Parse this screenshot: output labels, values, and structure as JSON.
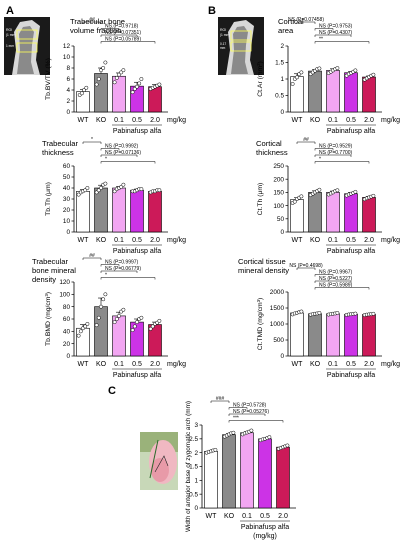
{
  "figure": {
    "panel_letters": [
      "A",
      "B",
      "C"
    ],
    "group_label": "Pabinafusp alfa",
    "unit_label": "mg/kg",
    "panel_c_group_label_lines": [
      "Pabinafusp alfa",
      "(mg/kg)"
    ],
    "inset_labels": {
      "roi_a": "ROI\n(1 mm)",
      "offset_a": "1 mm",
      "roi_b": "ROI\n(1 mm)",
      "offset_b": "0.17\nmm"
    }
  },
  "colors": {
    "WT": "#ffffff",
    "KO": "#8a8a8a",
    "0.1": "#f2a6f2",
    "0.5": "#cc33e6",
    "2.0": "#cc1a59",
    "error": "#222222",
    "point": "#ffffff"
  },
  "chart_data": [
    {
      "id": "A1",
      "type": "bar",
      "title_lines": [
        "Trabecular bone",
        "volume fraction"
      ],
      "ylabel": "Tb.BV/TV (%)",
      "categories": [
        "WT",
        "KO",
        "0.1",
        "0.5",
        "2.0"
      ],
      "values": [
        3.7,
        7.0,
        6.5,
        4.7,
        4.6
      ],
      "errors": [
        0.4,
        1.0,
        0.6,
        0.7,
        0.4
      ],
      "points": [
        [
          3.1,
          3.4,
          4.0,
          4.4
        ],
        [
          5.0,
          6.0,
          7.6,
          8.0,
          9.0
        ],
        [
          5.4,
          6.2,
          6.8,
          7.2,
          7.6
        ],
        [
          3.6,
          4.2,
          4.6,
          5.2,
          6.0
        ],
        [
          4.2,
          4.4,
          4.6,
          4.8,
          5.0
        ]
      ],
      "ylim": [
        0,
        12
      ],
      "yticks": [
        0,
        2,
        4,
        6,
        8,
        10,
        12
      ],
      "significance": [
        {
          "from": 0,
          "to": 1,
          "label": "##",
          "level": 0
        },
        {
          "from": 1,
          "to": 2,
          "label": "NS (P=0.9718)",
          "level": 1
        },
        {
          "from": 1,
          "to": 3,
          "label": "NS (P=0.07351)",
          "level": 2
        },
        {
          "from": 1,
          "to": 4,
          "label": "NS (P=0.05789)",
          "level": 3
        }
      ]
    },
    {
      "id": "A2",
      "type": "bar",
      "title_lines": [
        "Trabecular",
        "thickness"
      ],
      "ylabel": "Tb.Th (μm)",
      "categories": [
        "WT",
        "KO",
        "0.1",
        "0.5",
        "2.0"
      ],
      "values": [
        37,
        40,
        40,
        38,
        37
      ],
      "errors": [
        1.5,
        2.5,
        1.5,
        1.0,
        1.0
      ],
      "points": [
        [
          34,
          36,
          37,
          38,
          40
        ],
        [
          36,
          38,
          40,
          43,
          44
        ],
        [
          37,
          39,
          40,
          41,
          43
        ],
        [
          37,
          37,
          38,
          39,
          39
        ],
        [
          36,
          37,
          37,
          38,
          38
        ]
      ],
      "ylim": [
        0,
        60
      ],
      "yticks": [
        0,
        10,
        20,
        30,
        40,
        50,
        60
      ],
      "significance": [
        {
          "from": 0,
          "to": 1,
          "label": "*",
          "level": 0
        },
        {
          "from": 1,
          "to": 2,
          "label": "NS (P=0.9992)",
          "level": 1
        },
        {
          "from": 1,
          "to": 3,
          "label": "NS (P=0.07136)",
          "level": 2
        },
        {
          "from": 1,
          "to": 4,
          "label": "*",
          "level": 3
        }
      ]
    },
    {
      "id": "A3",
      "type": "bar",
      "title_lines": [
        "Trabecular",
        "bone mineral",
        "density"
      ],
      "ylabel": "Tb.BMD (mg/cm³)",
      "categories": [
        "WT",
        "KO",
        "0.1",
        "0.5",
        "2.0"
      ],
      "values": [
        45,
        80,
        65,
        55,
        51
      ],
      "errors": [
        6,
        14,
        6,
        5,
        4
      ],
      "points": [
        [
          33,
          40,
          45,
          48,
          52
        ],
        [
          50,
          62,
          80,
          92,
          100
        ],
        [
          55,
          60,
          65,
          72,
          75
        ],
        [
          42,
          48,
          55,
          60,
          62
        ],
        [
          44,
          48,
          52,
          54,
          57
        ]
      ],
      "ylim": [
        0,
        120
      ],
      "yticks": [
        0,
        20,
        40,
        60,
        80,
        100,
        120
      ],
      "significance": [
        {
          "from": 0,
          "to": 1,
          "label": "##",
          "level": 0
        },
        {
          "from": 1,
          "to": 2,
          "label": "NS (P=0.9997)",
          "level": 1
        },
        {
          "from": 1,
          "to": 3,
          "label": "NS (P=0.06779)",
          "level": 2
        },
        {
          "from": 1,
          "to": 4,
          "label": "*",
          "level": 3
        }
      ]
    },
    {
      "id": "B1",
      "type": "bar",
      "title_lines": [
        "Cortical",
        "area"
      ],
      "ylabel": "Ct.Ar (mm²)",
      "categories": [
        "WT",
        "KO",
        "0.1",
        "0.5",
        "2.0"
      ],
      "values": [
        1.07,
        1.24,
        1.26,
        1.19,
        1.06
      ],
      "errors": [
        0.09,
        0.05,
        0.05,
        0.04,
        0.03
      ],
      "points": [
        [
          0.85,
          1.0,
          1.05,
          1.15,
          1.2
        ],
        [
          1.15,
          1.2,
          1.25,
          1.3,
          1.32
        ],
        [
          1.18,
          1.22,
          1.26,
          1.3,
          1.33
        ],
        [
          1.1,
          1.15,
          1.18,
          1.22,
          1.26
        ],
        [
          0.98,
          1.02,
          1.06,
          1.1,
          1.13
        ]
      ],
      "ylim": [
        0,
        2.0
      ],
      "yticks": [
        0,
        0.5,
        1.0,
        1.5,
        2.0
      ],
      "significance": [
        {
          "from": 0,
          "to": 1,
          "label": "NS (P=0.07458)",
          "level": 0
        },
        {
          "from": 1,
          "to": 2,
          "label": "NS (P=0.9753)",
          "level": 1
        },
        {
          "from": 1,
          "to": 3,
          "label": "NS (P=0.4307)",
          "level": 2
        },
        {
          "from": 1,
          "to": 4,
          "label": "**",
          "level": 3
        }
      ]
    },
    {
      "id": "B2",
      "type": "bar",
      "title_lines": [
        "Cortical",
        "thickness"
      ],
      "ylabel": "Ct.Th (μm)",
      "categories": [
        "WT",
        "KO",
        "0.1",
        "0.5",
        "2.0"
      ],
      "values": [
        123,
        150,
        150,
        145,
        131
      ],
      "errors": [
        7,
        6,
        5,
        5,
        4
      ],
      "points": [
        [
          110,
          115,
          125,
          130,
          135
        ],
        [
          140,
          145,
          150,
          155,
          160
        ],
        [
          142,
          146,
          150,
          155,
          158
        ],
        [
          138,
          142,
          145,
          148,
          152
        ],
        [
          124,
          128,
          131,
          134,
          137
        ]
      ],
      "ylim": [
        0,
        250
      ],
      "yticks": [
        0,
        50,
        100,
        150,
        200,
        250
      ],
      "significance": [
        {
          "from": 0,
          "to": 1,
          "label": "##",
          "level": 0
        },
        {
          "from": 1,
          "to": 2,
          "label": "NS (P=0.9529)",
          "level": 1
        },
        {
          "from": 1,
          "to": 3,
          "label": "NS (P=0.7700)",
          "level": 2
        },
        {
          "from": 1,
          "to": 4,
          "label": "*",
          "level": 3
        }
      ]
    },
    {
      "id": "B3",
      "type": "bar",
      "title_lines": [
        "Cortical tissue",
        "mineral density"
      ],
      "ylabel": "Ct.TMD (mg/cm³)",
      "categories": [
        "WT",
        "KO",
        "0.1",
        "0.5",
        "2.0"
      ],
      "values": [
        1345,
        1320,
        1320,
        1305,
        1300
      ],
      "errors": [
        20,
        12,
        12,
        12,
        12
      ],
      "points": [
        [
          1300,
          1330,
          1350,
          1370,
          1390
        ],
        [
          1290,
          1310,
          1320,
          1330,
          1345
        ],
        [
          1295,
          1310,
          1320,
          1330,
          1345
        ],
        [
          1285,
          1298,
          1305,
          1315,
          1325
        ],
        [
          1280,
          1292,
          1300,
          1310,
          1318
        ]
      ],
      "ylim": [
        0,
        2000
      ],
      "yticks": [
        0,
        500,
        1000,
        1500,
        2000
      ],
      "significance": [
        {
          "from": 0,
          "to": 1,
          "label": "NS (P=0.4698)",
          "level": 0
        },
        {
          "from": 1,
          "to": 2,
          "label": "NS (P=0.9967)",
          "level": 1
        },
        {
          "from": 1,
          "to": 3,
          "label": "NS (P=0.5227)",
          "level": 2
        },
        {
          "from": 1,
          "to": 4,
          "label": "NS (P=0.5989)",
          "level": 3
        }
      ]
    },
    {
      "id": "C1",
      "type": "bar",
      "title_lines": [],
      "ylabel": "Width of anterior base of zygomatic arch (mm)",
      "categories": [
        "WT",
        "KO",
        "0.1",
        "0.5",
        "2.0"
      ],
      "values": [
        2.05,
        2.65,
        2.72,
        2.5,
        2.2
      ],
      "errors": [
        0.03,
        0.04,
        0.04,
        0.03,
        0.03
      ],
      "points": [
        [
          2.0,
          2.03,
          2.05,
          2.08,
          2.1
        ],
        [
          2.58,
          2.62,
          2.66,
          2.7,
          2.72
        ],
        [
          2.66,
          2.7,
          2.73,
          2.76,
          2.8
        ],
        [
          2.45,
          2.48,
          2.5,
          2.53,
          2.56
        ],
        [
          2.14,
          2.17,
          2.2,
          2.23,
          2.26
        ]
      ],
      "ylim": [
        0,
        3
      ],
      "yticks": [
        0,
        0.5,
        1.0,
        1.5,
        2.0,
        2.5,
        3.0
      ],
      "significance": [
        {
          "from": 0,
          "to": 1,
          "label": "###",
          "level": 0
        },
        {
          "from": 1,
          "to": 2,
          "label": "NS (P=0.5728)",
          "level": 1
        },
        {
          "from": 1,
          "to": 3,
          "label": "NS (P=0.05276)",
          "level": 2
        },
        {
          "from": 1,
          "to": 4,
          "label": "***",
          "level": 3
        }
      ]
    }
  ]
}
